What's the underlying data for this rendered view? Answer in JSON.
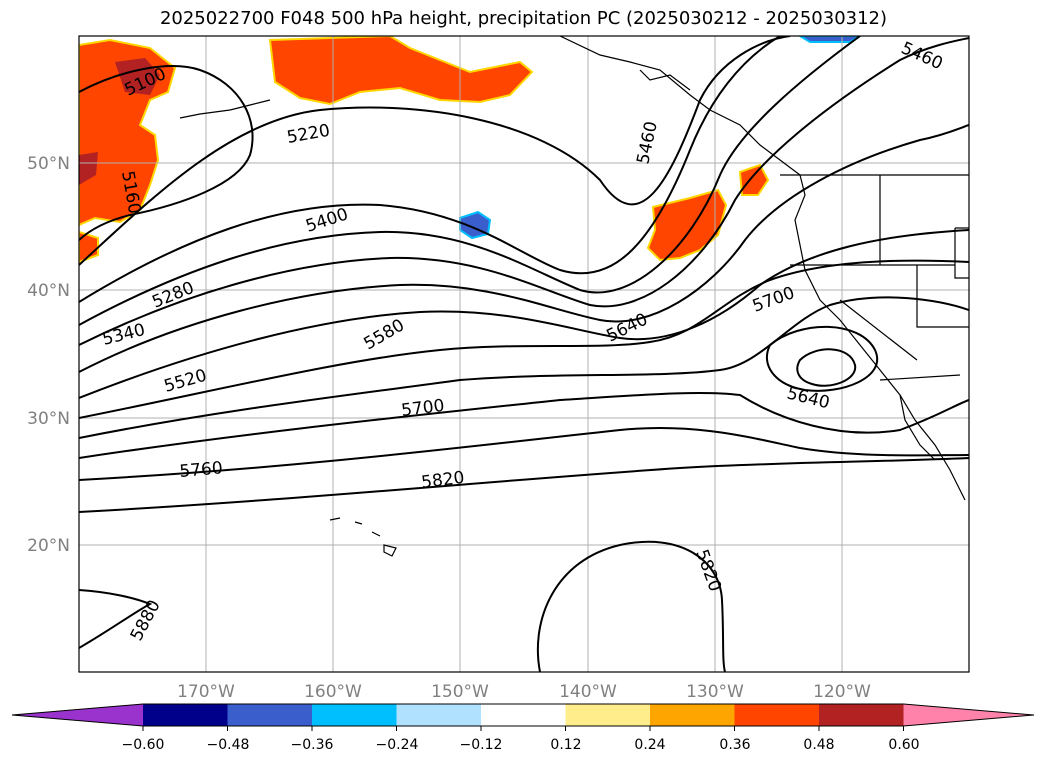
{
  "title": "2025022700 F048 500 hPa height, precipitation PC (2025030212 - 2025030312)",
  "lat_labels": [
    "50°N",
    "40°N",
    "30°N",
    "20°N"
  ],
  "lon_labels": [
    "170°W",
    "160°W",
    "150°W",
    "140°W",
    "130°W",
    "120°W"
  ],
  "contour_labels": [
    "5100",
    "5160",
    "5220",
    "5280",
    "5340",
    "5400",
    "5460",
    "5460",
    "5520",
    "5580",
    "5640",
    "5640",
    "5700",
    "5700",
    "5760",
    "5820",
    "5820",
    "5880"
  ],
  "colorbar": {
    "ticks": [
      "−0.60",
      "−0.48",
      "−0.36",
      "−0.24",
      "−0.12",
      "0.12",
      "0.24",
      "0.36",
      "0.48",
      "0.60"
    ],
    "colors": [
      "#9a32cd",
      "#00008b",
      "#3a5fcd",
      "#00bfff",
      "#b0e2ff",
      "#ffffff",
      "#ffec8b",
      "#ffa500",
      "#ff4500",
      "#b22222",
      "#ff82ab"
    ]
  },
  "colors": {
    "precip_high": "#ff4500",
    "precip_veryhigh": "#b22222",
    "precip_low": "#3a5fcd",
    "contour": "#000000",
    "grid": "#b0b0b0"
  }
}
